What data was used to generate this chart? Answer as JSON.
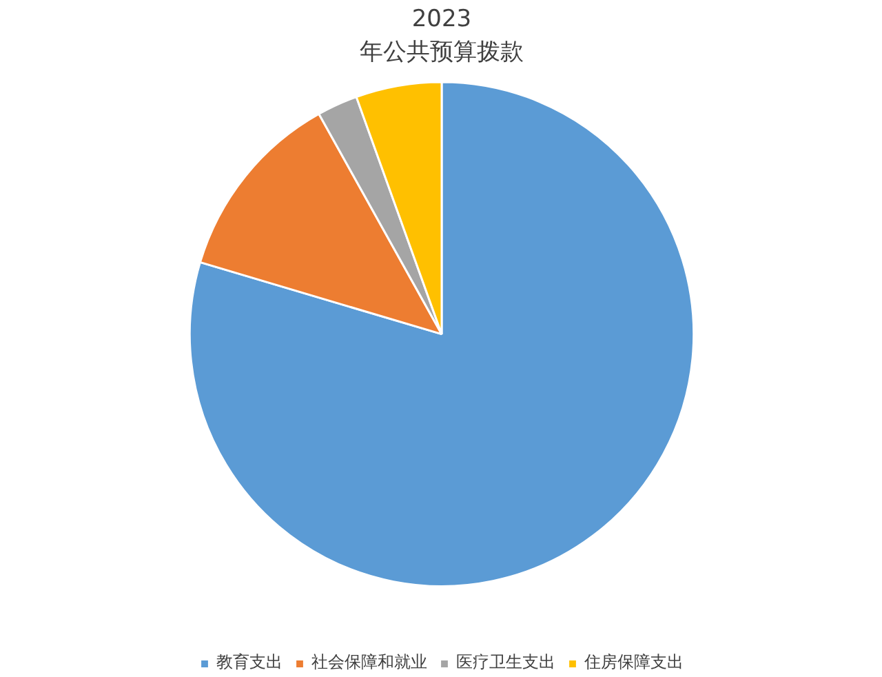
{
  "chart_data": {
    "type": "pie",
    "title": "2023\n年公共预算拨款",
    "categories": [
      "教育支出",
      "社会保障和就业",
      "医疗卫生支出",
      "住房保障支出"
    ],
    "values": [
      79.6,
      12.3,
      2.6,
      5.5
    ],
    "colors": [
      "#5b9bd5",
      "#ed7d31",
      "#a5a5a5",
      "#ffc000"
    ],
    "legend": "bottom"
  }
}
